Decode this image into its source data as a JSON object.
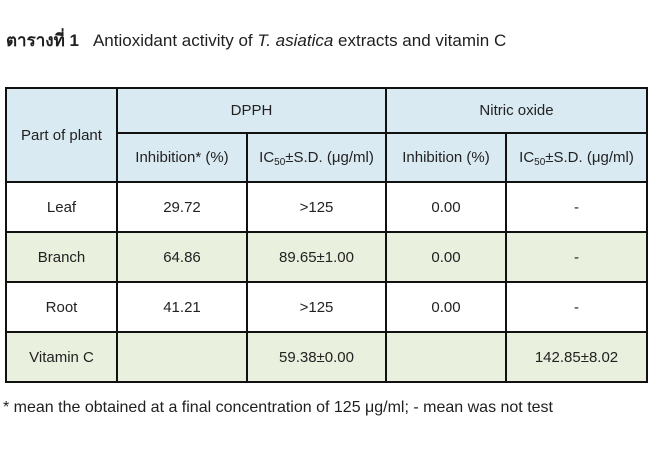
{
  "caption": {
    "number_label": "ตารางที่ 1",
    "text_pre": "Antioxidant activity of",
    "species_italic": "T. asiatica",
    "text_post": "extracts and vitamin C"
  },
  "table": {
    "corner_header": "Part of plant",
    "groups": [
      {
        "label": "DPPH"
      },
      {
        "label": "Nitric oxide"
      }
    ],
    "subheaders": {
      "dpph_inhibition": "Inhibition* (%)",
      "no_inhibition": "Inhibition (%)",
      "ic_prefix": "IC",
      "ic_sub": "50",
      "ic_suffix": "±S.D. (μg/ml)"
    },
    "rows": [
      {
        "part": "Leaf",
        "dpph_inhibition": "29.72",
        "dpph_ic50": ">125",
        "no_inhibition": "0.00",
        "no_ic50": "-"
      },
      {
        "part": "Branch",
        "dpph_inhibition": "64.86",
        "dpph_ic50": "89.65±1.00",
        "no_inhibition": "0.00",
        "no_ic50": "-"
      },
      {
        "part": "Root",
        "dpph_inhibition": "41.21",
        "dpph_ic50": ">125",
        "no_inhibition": "0.00",
        "no_ic50": "-"
      },
      {
        "part": "Vitamin C",
        "dpph_inhibition": "",
        "dpph_ic50": "59.38±0.00",
        "no_inhibition": "",
        "no_ic50": "142.85±8.02"
      }
    ]
  },
  "footnote": "* mean the obtained at a final concentration of 125 μg/ml; - mean was not test",
  "colors": {
    "header_bg": "#d9eaf2",
    "alt_row_bg": "#e9f0dd",
    "row_bg": "#ffffff",
    "border": "#111111",
    "text": "#222222"
  }
}
